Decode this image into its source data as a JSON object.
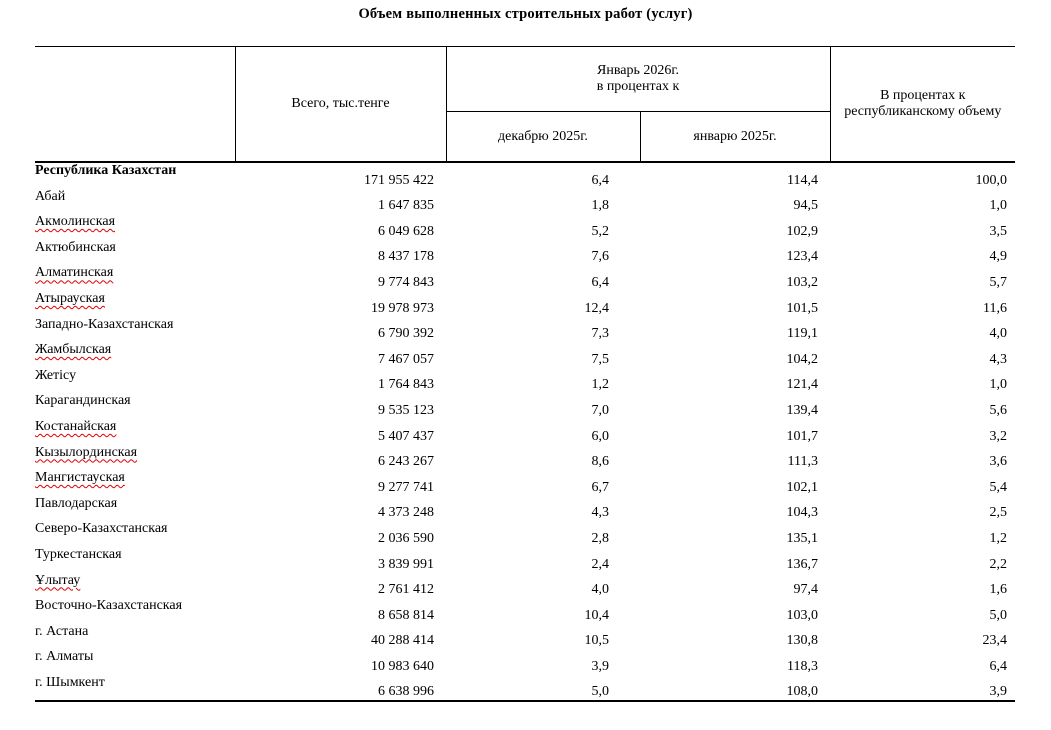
{
  "title": "Объем выполненных строительных работ (услуг)",
  "colors": {
    "text": "#000000",
    "border": "#000000",
    "spellcheck_underline": "#e00000",
    "background": "#ffffff"
  },
  "table": {
    "headers": {
      "region": "",
      "total": "Всего, тыс.тенге",
      "group": "Январь 2026г.\nв процентах к",
      "sub_dec": "декабрю 2025г.",
      "sub_jan": "январю  2025г.",
      "republic_share": "В процентах к республиканскому объему"
    },
    "rows": [
      {
        "name": "Республика Казахстан",
        "bold": true,
        "misspelled": false,
        "total": "171 955 422",
        "to_dec_2025": "6,4",
        "to_jan_2025": "114,4",
        "share": "100,0"
      },
      {
        "name": "Абай",
        "bold": false,
        "misspelled": false,
        "total": "1 647 835",
        "to_dec_2025": "1,8",
        "to_jan_2025": "94,5",
        "share": "1,0"
      },
      {
        "name": "Акмолинская",
        "bold": false,
        "misspelled": true,
        "total": "6 049 628",
        "to_dec_2025": "5,2",
        "to_jan_2025": "102,9",
        "share": "3,5"
      },
      {
        "name": "Актюбинская",
        "bold": false,
        "misspelled": false,
        "total": "8 437 178",
        "to_dec_2025": "7,6",
        "to_jan_2025": "123,4",
        "share": "4,9"
      },
      {
        "name": "Алматинская",
        "bold": false,
        "misspelled": true,
        "total": "9 774 843",
        "to_dec_2025": "6,4",
        "to_jan_2025": "103,2",
        "share": "5,7"
      },
      {
        "name": "Атырауская",
        "bold": false,
        "misspelled": true,
        "total": "19 978 973",
        "to_dec_2025": "12,4",
        "to_jan_2025": "101,5",
        "share": "11,6"
      },
      {
        "name": "Западно-Казахстанская",
        "bold": false,
        "misspelled": false,
        "total": "6 790 392",
        "to_dec_2025": "7,3",
        "to_jan_2025": "119,1",
        "share": "4,0"
      },
      {
        "name": "Жамбылская",
        "bold": false,
        "misspelled": true,
        "total": "7 467 057",
        "to_dec_2025": "7,5",
        "to_jan_2025": "104,2",
        "share": "4,3"
      },
      {
        "name": "Жетісу",
        "bold": false,
        "misspelled": false,
        "total": "1 764 843",
        "to_dec_2025": "1,2",
        "to_jan_2025": "121,4",
        "share": "1,0"
      },
      {
        "name": "Карагандинская",
        "bold": false,
        "misspelled": false,
        "total": "9 535 123",
        "to_dec_2025": "7,0",
        "to_jan_2025": "139,4",
        "share": "5,6"
      },
      {
        "name": "Костанайская",
        "bold": false,
        "misspelled": true,
        "total": "5 407 437",
        "to_dec_2025": "6,0",
        "to_jan_2025": "101,7",
        "share": "3,2"
      },
      {
        "name": "Кызылординская",
        "bold": false,
        "misspelled": true,
        "total": "6 243 267",
        "to_dec_2025": "8,6",
        "to_jan_2025": "111,3",
        "share": "3,6"
      },
      {
        "name": "Мангистауская",
        "bold": false,
        "misspelled": true,
        "total": "9 277 741",
        "to_dec_2025": "6,7",
        "to_jan_2025": "102,1",
        "share": "5,4"
      },
      {
        "name": "Павлодарская",
        "bold": false,
        "misspelled": false,
        "total": "4 373 248",
        "to_dec_2025": "4,3",
        "to_jan_2025": "104,3",
        "share": "2,5"
      },
      {
        "name": "Северо-Казахстанская",
        "bold": false,
        "misspelled": false,
        "total": "2 036 590",
        "to_dec_2025": "2,8",
        "to_jan_2025": "135,1",
        "share": "1,2"
      },
      {
        "name": "Туркестанская",
        "bold": false,
        "misspelled": false,
        "total": "3 839 991",
        "to_dec_2025": "2,4",
        "to_jan_2025": "136,7",
        "share": "2,2"
      },
      {
        "name": "Ұлытау",
        "bold": false,
        "misspelled": true,
        "total": "2 761 412",
        "to_dec_2025": "4,0",
        "to_jan_2025": "97,4",
        "share": "1,6"
      },
      {
        "name": "Восточно-Казахстанская",
        "bold": false,
        "misspelled": false,
        "total": "8 658 814",
        "to_dec_2025": "10,4",
        "to_jan_2025": "103,0",
        "share": "5,0"
      },
      {
        "name": "г. Астана",
        "bold": false,
        "misspelled": false,
        "total": "40 288 414",
        "to_dec_2025": "10,5",
        "to_jan_2025": "130,8",
        "share": "23,4"
      },
      {
        "name": "г. Алматы",
        "bold": false,
        "misspelled": false,
        "total": "10 983 640",
        "to_dec_2025": "3,9",
        "to_jan_2025": "118,3",
        "share": "6,4"
      },
      {
        "name": "г. Шымкент",
        "bold": false,
        "misspelled": false,
        "total": "6 638 996",
        "to_dec_2025": "5,0",
        "to_jan_2025": "108,0",
        "share": "3,9"
      }
    ]
  }
}
